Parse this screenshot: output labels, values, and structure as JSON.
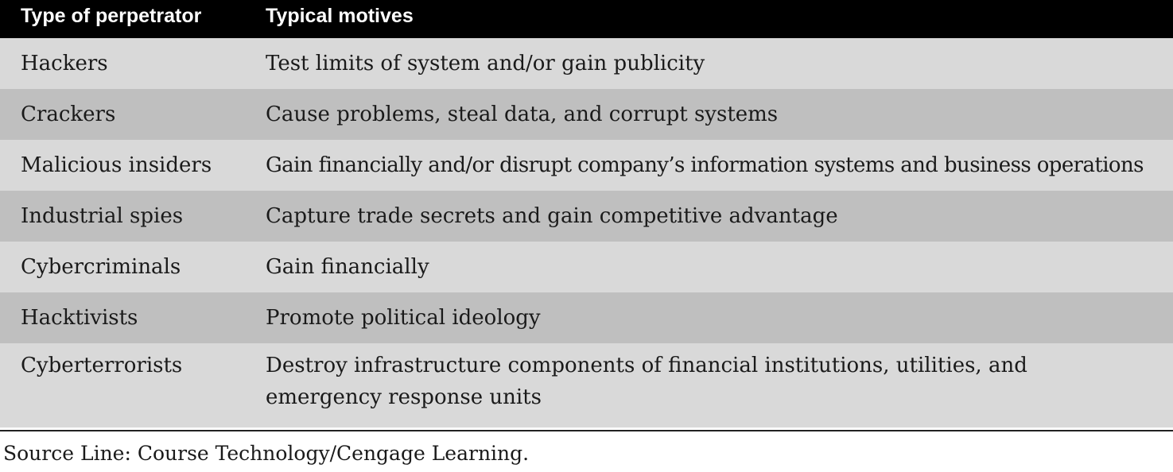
{
  "table": {
    "headers": [
      "Type of perpetrator",
      "Typical motives"
    ],
    "rows": [
      {
        "type": "Hackers",
        "motive": "Test limits of system and/or gain publicity"
      },
      {
        "type": "Crackers",
        "motive": "Cause problems, steal data, and corrupt systems"
      },
      {
        "type": "Malicious insiders",
        "motive": "Gain financially and/or disrupt company’s information systems and business operations"
      },
      {
        "type": "Industrial spies",
        "motive": "Capture trade secrets and gain competitive advantage"
      },
      {
        "type": "Cybercriminals",
        "motive": "Gain financially"
      },
      {
        "type": "Hacktivists",
        "motive": "Promote political ideology"
      },
      {
        "type": "Cyberterrorists",
        "motive": "Destroy infrastructure components of financial institutions, utilities, and emergency response units"
      }
    ]
  },
  "source_line": "Source Line: Course Technology/Cengage Learning.",
  "colors": {
    "header_bg": "#000000",
    "header_text": "#ffffff",
    "row_light": "#d9d9d9",
    "row_dark": "#bfbfbf"
  }
}
